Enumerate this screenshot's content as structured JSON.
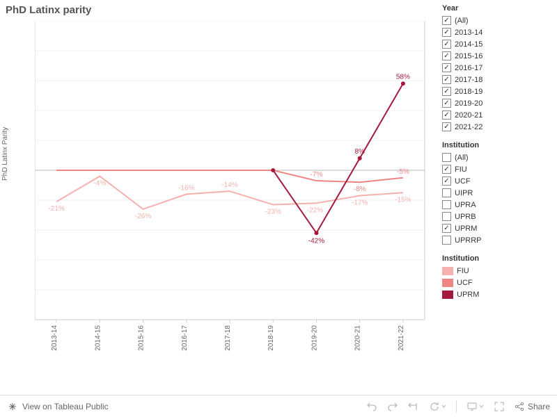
{
  "title": "PhD Latinx parity",
  "yaxis_label": "PhD Latinx Parity",
  "chart": {
    "type": "line",
    "categories": [
      "2013-14",
      "2014-15",
      "2015-16",
      "2016-17",
      "2017-18",
      "2018-19",
      "2019-20",
      "2020-21",
      "2021-22"
    ],
    "ylim": [
      -1.0,
      1.0
    ],
    "ytick_step": 0.2,
    "yticks": [
      "-1.0",
      "-0.8",
      "-0.6",
      "-0.4",
      "-0.2",
      "0.0",
      "0.2",
      "0.4",
      "0.6",
      "0.8",
      "1.0"
    ],
    "grid_color": "#f2f2f2",
    "zero_line_color": "#bababa",
    "axis_line_color": "#cccccc",
    "border_color": "#cccccc",
    "tick_font_size": 10,
    "tick_color": "#666666",
    "label_font_size": 10,
    "data_label_font_size": 10,
    "background_color": "#ffffff",
    "line_width": 2,
    "marker_size": 3,
    "series": [
      {
        "name": "FIU",
        "color": "#f6b0ad",
        "values": [
          -0.21,
          -0.04,
          -0.26,
          -0.16,
          -0.14,
          -0.23,
          -0.22,
          -0.17,
          -0.15
        ],
        "labels": [
          "-21%",
          "-4%",
          "-26%",
          "-16%",
          "-14%",
          "-23%",
          "-22%",
          "-17%",
          "-15%"
        ],
        "show_markers": false,
        "label_offsets": [
          [
            0,
            13
          ],
          [
            0,
            13
          ],
          [
            0,
            13
          ],
          [
            0,
            -6
          ],
          [
            0,
            -6
          ],
          [
            0,
            13
          ],
          [
            -2,
            13
          ],
          [
            0,
            13
          ],
          [
            0,
            13
          ]
        ]
      },
      {
        "name": "UCF",
        "color": "#ed8683",
        "values": [
          0,
          0,
          0,
          0,
          0,
          0,
          -0.07,
          -0.08,
          -0.05
        ],
        "labels": [
          null,
          null,
          null,
          null,
          null,
          null,
          "-7%",
          "-8%",
          "-5%"
        ],
        "show_markers": false,
        "label_offsets": [
          [
            0,
            0
          ],
          [
            0,
            0
          ],
          [
            0,
            0
          ],
          [
            0,
            0
          ],
          [
            0,
            0
          ],
          [
            0,
            0
          ],
          [
            0,
            -6
          ],
          [
            0,
            13
          ],
          [
            0,
            -6
          ]
        ]
      },
      {
        "name": "UPRM",
        "color": "#a6193c",
        "values": [
          null,
          null,
          null,
          null,
          null,
          0,
          -0.42,
          0.08,
          0.58
        ],
        "labels": [
          null,
          null,
          null,
          null,
          null,
          null,
          "-42%",
          "8%",
          "58%"
        ],
        "show_markers": true,
        "label_offsets": [
          [
            0,
            0
          ],
          [
            0,
            0
          ],
          [
            0,
            0
          ],
          [
            0,
            0
          ],
          [
            0,
            0
          ],
          [
            0,
            0
          ],
          [
            0,
            14
          ],
          [
            0,
            -7
          ],
          [
            0,
            -7
          ]
        ]
      }
    ]
  },
  "filters": {
    "year": {
      "heading": "Year",
      "items": [
        {
          "label": "(All)",
          "checked": true
        },
        {
          "label": "2013-14",
          "checked": true
        },
        {
          "label": "2014-15",
          "checked": true
        },
        {
          "label": "2015-16",
          "checked": true
        },
        {
          "label": "2016-17",
          "checked": true
        },
        {
          "label": "2017-18",
          "checked": true
        },
        {
          "label": "2018-19",
          "checked": true
        },
        {
          "label": "2019-20",
          "checked": true
        },
        {
          "label": "2020-21",
          "checked": true
        },
        {
          "label": "2021-22",
          "checked": true
        }
      ]
    },
    "institution": {
      "heading": "Institution",
      "items": [
        {
          "label": "(All)",
          "checked": false
        },
        {
          "label": "FIU",
          "checked": true
        },
        {
          "label": "UCF",
          "checked": true
        },
        {
          "label": "UIPR",
          "checked": false
        },
        {
          "label": "UPRA",
          "checked": false
        },
        {
          "label": "UPRB",
          "checked": false
        },
        {
          "label": "UPRM",
          "checked": true
        },
        {
          "label": "UPRRP",
          "checked": false
        }
      ]
    }
  },
  "color_legend": {
    "heading": "Institution",
    "items": [
      {
        "label": "FIU",
        "color": "#f6b0ad"
      },
      {
        "label": "UCF",
        "color": "#ed8683"
      },
      {
        "label": "UPRM",
        "color": "#a6193c"
      }
    ]
  },
  "toolbar": {
    "view_label": "View on Tableau Public",
    "share_label": "Share"
  }
}
